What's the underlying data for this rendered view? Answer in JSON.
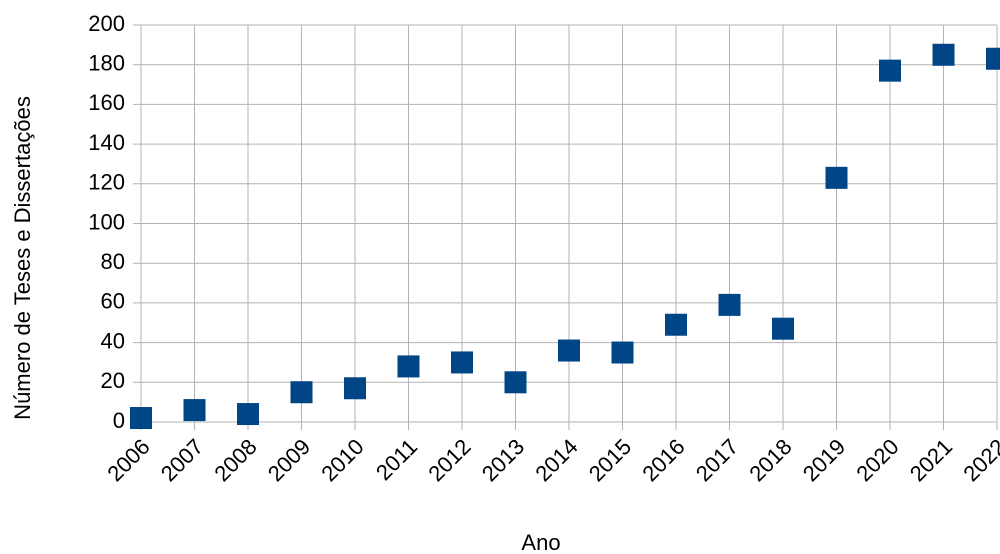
{
  "chart_data": {
    "type": "scatter",
    "x_label": "Ano",
    "y_label": "Número de Teses e Dissertações",
    "series": [
      {
        "name": "Teses e Dissertações",
        "color": "#004586",
        "x": [
          2006,
          2007,
          2008,
          2009,
          2010,
          2011,
          2012,
          2013,
          2014,
          2015,
          2016,
          2017,
          2018,
          2019,
          2020,
          2021,
          2022
        ],
        "values": [
          2,
          6,
          4,
          15,
          17,
          28,
          30,
          20,
          36,
          35,
          49,
          59,
          47,
          123,
          177,
          185,
          183
        ]
      }
    ],
    "xlim": [
      2006,
      2022
    ],
    "xticks": [
      2006,
      2007,
      2008,
      2009,
      2010,
      2011,
      2012,
      2013,
      2014,
      2015,
      2016,
      2017,
      2018,
      2019,
      2020,
      2021,
      2022
    ],
    "ylim": [
      0,
      200
    ],
    "yticks": [
      0,
      20,
      40,
      60,
      80,
      100,
      120,
      140,
      160,
      180,
      200
    ],
    "grid": true
  }
}
